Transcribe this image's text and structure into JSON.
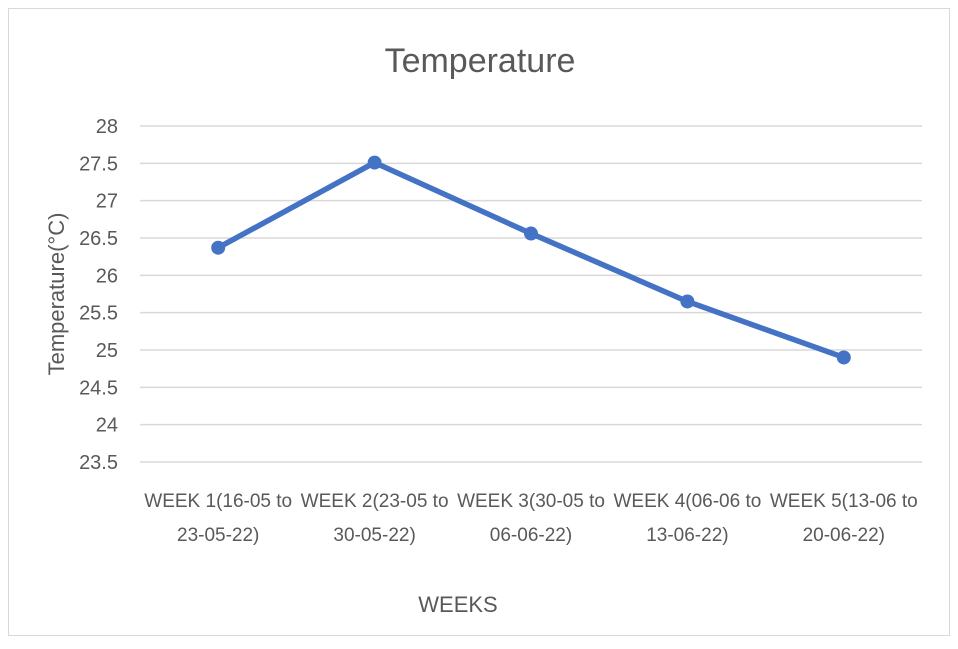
{
  "chart_data": {
    "type": "line",
    "title": "Temperature",
    "xlabel": "WEEKS",
    "ylabel": "Temperature(°C)",
    "categories": [
      "WEEK 1(16-05 to 23-05-22)",
      "WEEK 2(23-05 to 30-05-22)",
      "WEEK 3(30-05 to 06-06-22)",
      "WEEK 4(06-06 to 13-06-22)",
      "WEEK 5(13-06 to 20-06-22)"
    ],
    "category_lines": [
      [
        "WEEK 1(16-05 to",
        "23-05-22)"
      ],
      [
        "WEEK 2(23-05 to",
        "30-05-22)"
      ],
      [
        "WEEK 3(30-05 to",
        "06-06-22)"
      ],
      [
        "WEEK 4(06-06 to",
        "13-06-22)"
      ],
      [
        "WEEK 5(13-06 to",
        "20-06-22)"
      ]
    ],
    "series": [
      {
        "values": [
          26.37,
          27.51,
          26.56,
          25.65,
          24.9
        ]
      }
    ],
    "y_ticks": [
      "23.5",
      "24",
      "24.5",
      "25",
      "25.5",
      "26",
      "26.5",
      "27",
      "27.5",
      "28"
    ],
    "ylim": [
      23.5,
      28
    ],
    "grid": true,
    "legend": "none",
    "colors": {
      "line": "#4472c4",
      "grid": "#d9d9d9",
      "text": "#595959"
    }
  }
}
